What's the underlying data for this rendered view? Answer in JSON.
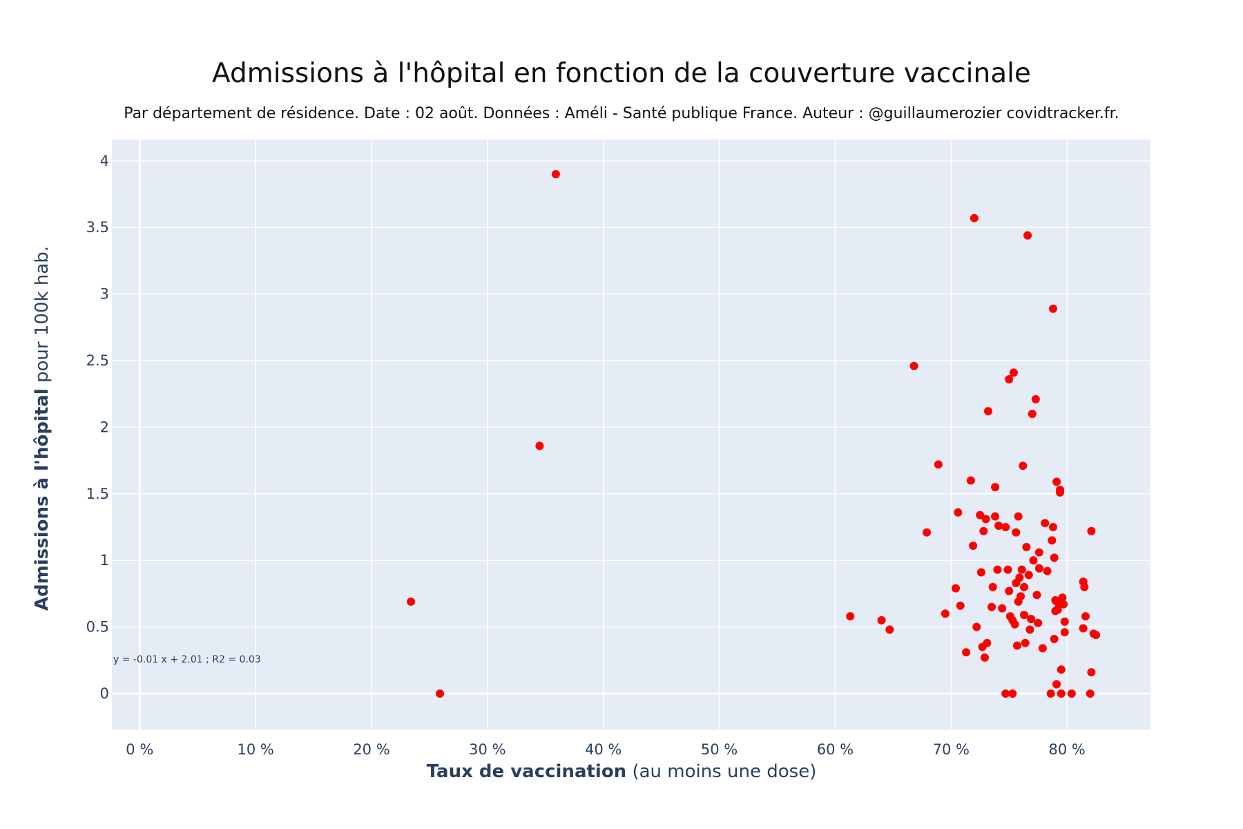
{
  "title": "Admissions à l'hôpital en fonction de la couverture vaccinale",
  "subtitle": "Par département de résidence. Date : 02 août. Données : Améli - Santé publique France. Auteur : @guillaumerozier covidtracker.fr.",
  "xaxis": {
    "label_bold": "Taux de vaccination",
    "label_rest": " (au moins une dose)"
  },
  "yaxis": {
    "label_bold": "Admissions à l'hôpital",
    "label_rest": " pour 100k hab."
  },
  "annotation": "y = -0.01 x + 2.01 ; R2 = 0.03",
  "colors": {
    "plot_bg": "#e5ecf6",
    "grid": "#ffffff",
    "marker": "#ff0000",
    "text": "#2a3f5f"
  },
  "chart_data": {
    "type": "scatter",
    "title": "Admissions à l'hôpital en fonction de la couverture vaccinale",
    "xlabel": "Taux de vaccination (au moins une dose)",
    "ylabel": "Admissions à l'hôpital pour 100k hab.",
    "xlim": [
      -2.4,
      87.2
    ],
    "ylim": [
      -0.27,
      4.16
    ],
    "xticks": [
      0,
      10,
      20,
      30,
      40,
      50,
      60,
      70,
      80
    ],
    "xtick_labels": [
      "0 %",
      "10 %",
      "20 %",
      "30 %",
      "40 %",
      "50 %",
      "60 %",
      "70 %",
      "80 %"
    ],
    "yticks": [
      0,
      0.5,
      1,
      1.5,
      2,
      2.5,
      3,
      3.5,
      4
    ],
    "ytick_labels": [
      "0",
      "0.5",
      "1",
      "1.5",
      "2",
      "2.5",
      "3",
      "3.5",
      "4"
    ],
    "grid": true,
    "legend": "none",
    "points": [
      [
        35.9,
        3.9
      ],
      [
        34.5,
        1.86
      ],
      [
        23.4,
        0.69
      ],
      [
        25.9,
        0.0
      ],
      [
        61.3,
        0.58
      ],
      [
        64.0,
        0.55
      ],
      [
        64.7,
        0.48
      ],
      [
        66.8,
        2.46
      ],
      [
        67.9,
        1.21
      ],
      [
        68.9,
        1.72
      ],
      [
        69.5,
        0.6
      ],
      [
        70.4,
        0.79
      ],
      [
        70.6,
        1.36
      ],
      [
        70.8,
        0.66
      ],
      [
        71.3,
        0.31
      ],
      [
        71.7,
        1.6
      ],
      [
        71.9,
        1.11
      ],
      [
        72.0,
        3.57
      ],
      [
        72.2,
        0.5
      ],
      [
        72.5,
        1.34
      ],
      [
        72.6,
        0.91
      ],
      [
        72.7,
        0.35
      ],
      [
        72.8,
        1.22
      ],
      [
        72.9,
        0.27
      ],
      [
        73.0,
        1.31
      ],
      [
        73.1,
        0.38
      ],
      [
        73.2,
        2.12
      ],
      [
        73.5,
        0.65
      ],
      [
        73.6,
        0.8
      ],
      [
        73.8,
        1.33
      ],
      [
        73.8,
        1.55
      ],
      [
        74.0,
        0.93
      ],
      [
        74.1,
        1.26
      ],
      [
        74.4,
        0.64
      ],
      [
        74.7,
        1.25
      ],
      [
        74.7,
        0.0
      ],
      [
        74.9,
        0.93
      ],
      [
        75.0,
        2.36
      ],
      [
        75.0,
        0.77
      ],
      [
        75.1,
        0.58
      ],
      [
        75.3,
        0.0
      ],
      [
        75.3,
        0.55
      ],
      [
        75.4,
        2.41
      ],
      [
        75.5,
        0.52
      ],
      [
        75.6,
        1.21
      ],
      [
        75.6,
        0.83
      ],
      [
        75.7,
        0.36
      ],
      [
        75.8,
        1.33
      ],
      [
        75.8,
        0.69
      ],
      [
        75.9,
        0.87
      ],
      [
        76.0,
        0.73
      ],
      [
        76.1,
        0.93
      ],
      [
        76.2,
        1.71
      ],
      [
        76.3,
        0.8
      ],
      [
        76.3,
        0.59
      ],
      [
        76.4,
        0.38
      ],
      [
        76.5,
        1.1
      ],
      [
        76.6,
        3.44
      ],
      [
        76.7,
        0.89
      ],
      [
        76.8,
        0.48
      ],
      [
        76.9,
        0.56
      ],
      [
        77.0,
        2.1
      ],
      [
        77.1,
        1.0
      ],
      [
        77.3,
        2.21
      ],
      [
        77.4,
        0.74
      ],
      [
        77.5,
        0.53
      ],
      [
        77.6,
        1.06
      ],
      [
        77.6,
        0.94
      ],
      [
        77.9,
        0.34
      ],
      [
        78.1,
        1.28
      ],
      [
        78.3,
        0.92
      ],
      [
        78.6,
        0.0
      ],
      [
        78.7,
        1.15
      ],
      [
        78.8,
        2.89
      ],
      [
        78.8,
        1.25
      ],
      [
        78.9,
        0.41
      ],
      [
        78.9,
        1.02
      ],
      [
        79.0,
        0.7
      ],
      [
        79.0,
        0.62
      ],
      [
        79.1,
        0.07
      ],
      [
        79.1,
        1.59
      ],
      [
        79.2,
        0.63
      ],
      [
        79.3,
        0.67
      ],
      [
        79.4,
        1.51
      ],
      [
        79.4,
        1.53
      ],
      [
        79.5,
        0.18
      ],
      [
        79.5,
        0.0
      ],
      [
        79.6,
        0.72
      ],
      [
        79.7,
        0.67
      ],
      [
        79.8,
        0.54
      ],
      [
        79.8,
        0.46
      ],
      [
        80.4,
        0.0
      ],
      [
        81.4,
        0.49
      ],
      [
        81.4,
        0.84
      ],
      [
        81.5,
        0.8
      ],
      [
        81.6,
        0.58
      ],
      [
        82.0,
        0.0
      ],
      [
        82.1,
        1.22
      ],
      [
        82.1,
        0.16
      ],
      [
        82.3,
        0.45
      ],
      [
        82.5,
        0.44
      ]
    ]
  }
}
